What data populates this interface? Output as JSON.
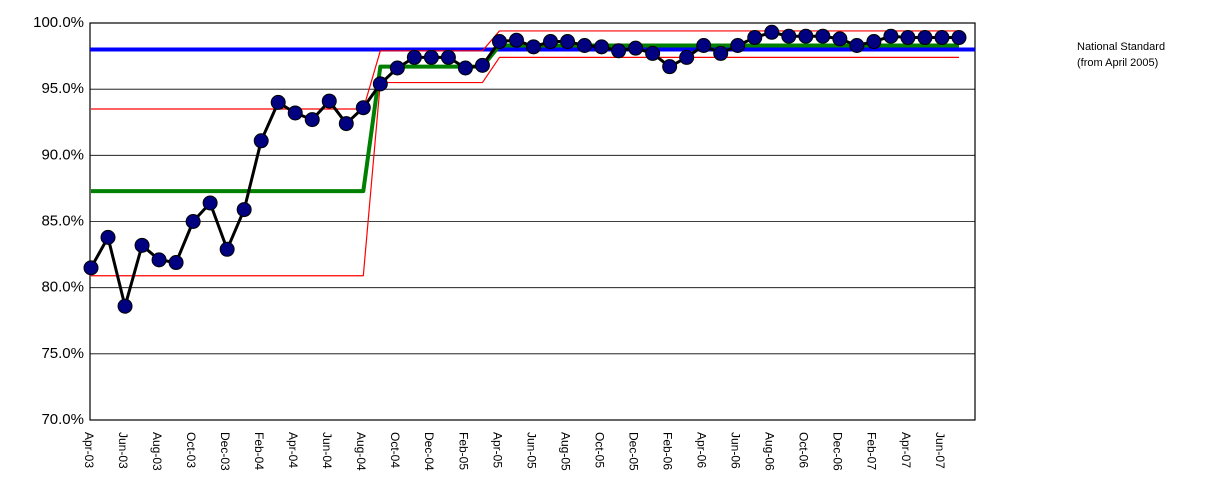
{
  "chart_data": {
    "type": "line",
    "categories": [
      "Apr-03",
      null,
      "Jun-03",
      null,
      "Aug-03",
      null,
      "Oct-03",
      null,
      "Dec-03",
      null,
      "Feb-04",
      null,
      "Apr-04",
      null,
      "Jun-04",
      null,
      "Aug-04",
      null,
      "Oct-04",
      null,
      "Dec-04",
      null,
      "Feb-05",
      null,
      "Apr-05",
      null,
      "Jun-05",
      null,
      "Aug-05",
      null,
      "Oct-05",
      null,
      "Dec-05",
      null,
      "Feb-06",
      null,
      "Apr-06",
      null,
      "Jun-06",
      null,
      "Aug-06",
      null,
      "Oct-06",
      null,
      "Dec-06",
      null,
      "Feb-07",
      null,
      "Apr-07",
      null,
      "Jun-07",
      null
    ],
    "series": [
      {
        "color": "#ff0000",
        "line_width": 1.2,
        "markers": false,
        "values": [
          93.5,
          93.5,
          93.5,
          93.5,
          93.5,
          93.5,
          93.5,
          93.5,
          93.5,
          93.5,
          93.5,
          93.5,
          93.5,
          93.5,
          93.5,
          93.5,
          93.5,
          97.9,
          97.9,
          97.9,
          97.9,
          97.9,
          97.9,
          97.9,
          99.4,
          99.4,
          99.4,
          99.4,
          99.4,
          99.4,
          99.4,
          99.4,
          99.4,
          99.4,
          99.4,
          99.4,
          99.4,
          99.4,
          99.4,
          99.4,
          99.4,
          99.4,
          99.4,
          99.4,
          99.4,
          99.4,
          99.4,
          99.4,
          99.4,
          99.4,
          99.4,
          99.4
        ]
      },
      {
        "color": "#ff0000",
        "line_width": 1.2,
        "markers": false,
        "values": [
          80.9,
          80.9,
          80.9,
          80.9,
          80.9,
          80.9,
          80.9,
          80.9,
          80.9,
          80.9,
          80.9,
          80.9,
          80.9,
          80.9,
          80.9,
          80.9,
          80.9,
          95.5,
          95.5,
          95.5,
          95.5,
          95.5,
          95.5,
          95.5,
          97.4,
          97.4,
          97.4,
          97.4,
          97.4,
          97.4,
          97.4,
          97.4,
          97.4,
          97.4,
          97.4,
          97.4,
          97.4,
          97.4,
          97.4,
          97.4,
          97.4,
          97.4,
          97.4,
          97.4,
          97.4,
          97.4,
          97.4,
          97.4,
          97.4,
          97.4,
          97.4,
          97.4
        ]
      },
      {
        "color": "#008000",
        "line_width": 4,
        "markers": false,
        "values": [
          87.3,
          87.3,
          87.3,
          87.3,
          87.3,
          87.3,
          87.3,
          87.3,
          87.3,
          87.3,
          87.3,
          87.3,
          87.3,
          87.3,
          87.3,
          87.3,
          87.3,
          96.7,
          96.7,
          96.7,
          96.7,
          96.7,
          96.7,
          96.7,
          98.3,
          98.3,
          98.3,
          98.3,
          98.3,
          98.3,
          98.3,
          98.3,
          98.3,
          98.3,
          98.3,
          98.3,
          98.3,
          98.3,
          98.3,
          98.3,
          98.3,
          98.3,
          98.3,
          98.3,
          98.3,
          98.3,
          98.3,
          98.3,
          98.3,
          98.3,
          98.3,
          98.3
        ]
      },
      {
        "color": "#000000",
        "marker_color": "#000080",
        "line_width": 3,
        "markers": true,
        "values": [
          81.5,
          83.8,
          78.6,
          83.2,
          82.1,
          81.9,
          85.0,
          86.4,
          82.9,
          85.9,
          91.1,
          94.0,
          93.2,
          92.7,
          94.1,
          92.4,
          93.6,
          95.4,
          96.6,
          97.4,
          97.4,
          97.4,
          96.6,
          96.8,
          98.6,
          98.7,
          98.2,
          98.6,
          98.6,
          98.3,
          98.2,
          97.9,
          98.1,
          97.7,
          96.7,
          97.4,
          98.3,
          97.7,
          98.3,
          98.9,
          99.3,
          99.0,
          99.0,
          99.0,
          98.8,
          98.3,
          98.6,
          99.0,
          98.9,
          98.9,
          98.9,
          98.9
        ]
      }
    ],
    "national_standard": {
      "value": 98,
      "color": "#0000ff",
      "annotation": [
        "National Standard",
        "(from April 2005)"
      ]
    },
    "ylim": [
      70,
      100
    ],
    "yticks": [
      {
        "value": 70,
        "label": "70.0%"
      },
      {
        "value": 75,
        "label": "75.0%"
      },
      {
        "value": 80,
        "label": "80.0%"
      },
      {
        "value": 85,
        "label": "85.0%"
      },
      {
        "value": 90,
        "label": "90.0%"
      },
      {
        "value": 95,
        "label": "95.0%"
      },
      {
        "value": 100,
        "label": "100.0%"
      }
    ],
    "grid": true
  }
}
